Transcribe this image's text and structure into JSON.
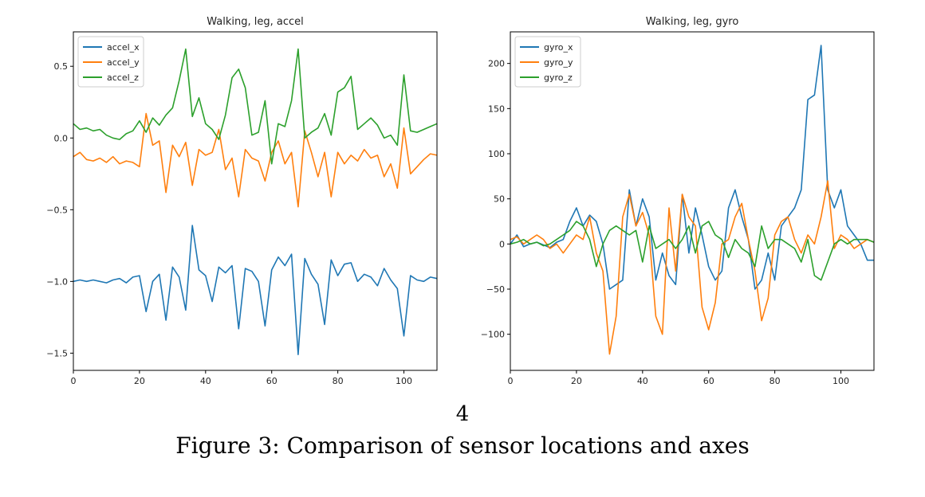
{
  "page": {
    "page_number": "4",
    "caption": "Figure 3: Comparison of sensor locations and axes"
  },
  "chart_data": [
    {
      "type": "line",
      "title": "Walking, leg, accel",
      "xlabel": "",
      "ylabel": "",
      "xlim": [
        0,
        110
      ],
      "ylim": [
        -1.62,
        0.74
      ],
      "xticks": [
        0,
        20,
        40,
        60,
        80,
        100
      ],
      "yticks": [
        -1.5,
        -1.0,
        -0.5,
        0.0,
        0.5
      ],
      "ytick_labels": [
        "−1.5",
        "−1.0",
        "−0.5",
        "0.0",
        "0.5"
      ],
      "legend_position": "top-left",
      "grid": false,
      "x": [
        0,
        2,
        4,
        6,
        8,
        10,
        12,
        14,
        16,
        18,
        20,
        22,
        24,
        26,
        28,
        30,
        32,
        34,
        36,
        38,
        40,
        42,
        44,
        46,
        48,
        50,
        52,
        54,
        56,
        58,
        60,
        62,
        64,
        66,
        68,
        70,
        72,
        74,
        76,
        78,
        80,
        82,
        84,
        86,
        88,
        90,
        92,
        94,
        96,
        98,
        100,
        102,
        104,
        106,
        108,
        110
      ],
      "series": [
        {
          "name": "accel_x",
          "color": "#1f77b4",
          "values": [
            -1.0,
            -0.99,
            -1.0,
            -0.99,
            -1.0,
            -1.01,
            -0.99,
            -0.98,
            -1.01,
            -0.97,
            -0.96,
            -1.21,
            -1.0,
            -0.95,
            -1.27,
            -0.9,
            -0.97,
            -1.2,
            -0.61,
            -0.92,
            -0.96,
            -1.14,
            -0.9,
            -0.94,
            -0.89,
            -1.33,
            -0.91,
            -0.93,
            -1.0,
            -1.31,
            -0.92,
            -0.83,
            -0.89,
            -0.81,
            -1.51,
            -0.84,
            -0.95,
            -1.02,
            -1.3,
            -0.85,
            -0.96,
            -0.88,
            -0.87,
            -1.0,
            -0.95,
            -0.97,
            -1.03,
            -0.91,
            -0.99,
            -1.05,
            -1.38,
            -0.96,
            -0.99,
            -1.0,
            -0.97,
            -0.98
          ]
        },
        {
          "name": "accel_y",
          "color": "#ff7f0e",
          "values": [
            -0.13,
            -0.1,
            -0.15,
            -0.16,
            -0.14,
            -0.17,
            -0.13,
            -0.18,
            -0.16,
            -0.17,
            -0.2,
            0.17,
            -0.05,
            -0.02,
            -0.38,
            -0.05,
            -0.13,
            -0.03,
            -0.33,
            -0.08,
            -0.12,
            -0.1,
            0.06,
            -0.22,
            -0.14,
            -0.41,
            -0.08,
            -0.14,
            -0.16,
            -0.3,
            -0.1,
            -0.02,
            -0.18,
            -0.1,
            -0.48,
            0.05,
            -0.1,
            -0.27,
            -0.1,
            -0.41,
            -0.1,
            -0.18,
            -0.12,
            -0.16,
            -0.08,
            -0.14,
            -0.12,
            -0.27,
            -0.18,
            -0.35,
            0.07,
            -0.25,
            -0.2,
            -0.15,
            -0.11,
            -0.12
          ]
        },
        {
          "name": "accel_z",
          "color": "#2ca02c",
          "values": [
            0.1,
            0.06,
            0.07,
            0.05,
            0.06,
            0.02,
            0.0,
            -0.01,
            0.03,
            0.05,
            0.12,
            0.04,
            0.14,
            0.09,
            0.16,
            0.21,
            0.4,
            0.62,
            0.15,
            0.28,
            0.1,
            0.06,
            -0.01,
            0.16,
            0.42,
            0.48,
            0.35,
            0.02,
            0.04,
            0.26,
            -0.18,
            0.1,
            0.08,
            0.26,
            0.62,
            0.0,
            0.04,
            0.07,
            0.17,
            0.02,
            0.32,
            0.35,
            0.43,
            0.06,
            0.1,
            0.14,
            0.09,
            0.0,
            0.02,
            -0.05,
            0.44,
            0.05,
            0.04,
            0.06,
            0.08,
            0.1
          ]
        }
      ]
    },
    {
      "type": "line",
      "title": "Walking, leg, gyro",
      "xlabel": "",
      "ylabel": "",
      "xlim": [
        0,
        110
      ],
      "ylim": [
        -140,
        235
      ],
      "xticks": [
        0,
        20,
        40,
        60,
        80,
        100
      ],
      "yticks": [
        -100,
        -50,
        0,
        50,
        100,
        150,
        200
      ],
      "ytick_labels": [
        "−100",
        "−50",
        "0",
        "50",
        "100",
        "150",
        "200"
      ],
      "legend_position": "top-left",
      "grid": false,
      "x": [
        0,
        2,
        4,
        6,
        8,
        10,
        12,
        14,
        16,
        18,
        20,
        22,
        24,
        26,
        28,
        30,
        32,
        34,
        36,
        38,
        40,
        42,
        44,
        46,
        48,
        50,
        52,
        54,
        56,
        58,
        60,
        62,
        64,
        66,
        68,
        70,
        72,
        74,
        76,
        78,
        80,
        82,
        84,
        86,
        88,
        90,
        92,
        94,
        96,
        98,
        100,
        102,
        104,
        106,
        108,
        110
      ],
      "series": [
        {
          "name": "gyro_x",
          "color": "#1f77b4",
          "values": [
            0,
            10,
            -3,
            0,
            2,
            -1,
            -4,
            2,
            5,
            25,
            40,
            20,
            32,
            25,
            0,
            -50,
            -45,
            -40,
            60,
            20,
            50,
            30,
            -40,
            -10,
            -35,
            -45,
            55,
            -10,
            40,
            10,
            -25,
            -40,
            -30,
            40,
            60,
            30,
            5,
            -50,
            -40,
            -10,
            -40,
            20,
            30,
            40,
            60,
            160,
            165,
            220,
            60,
            40,
            60,
            20,
            10,
            0,
            -18,
            -18
          ]
        },
        {
          "name": "gyro_y",
          "color": "#ff7f0e",
          "values": [
            5,
            8,
            0,
            5,
            10,
            5,
            -5,
            0,
            -10,
            0,
            10,
            5,
            30,
            -10,
            -30,
            -122,
            -80,
            30,
            55,
            20,
            35,
            10,
            -80,
            -100,
            40,
            -30,
            55,
            30,
            20,
            -70,
            -95,
            -65,
            0,
            5,
            30,
            45,
            5,
            -30,
            -85,
            -60,
            10,
            25,
            30,
            5,
            -10,
            10,
            0,
            30,
            70,
            -5,
            10,
            5,
            -5,
            0,
            5,
            2
          ]
        },
        {
          "name": "gyro_z",
          "color": "#2ca02c",
          "values": [
            0,
            2,
            5,
            0,
            2,
            -2,
            0,
            5,
            10,
            15,
            25,
            20,
            5,
            -25,
            0,
            15,
            20,
            15,
            10,
            15,
            -20,
            20,
            -5,
            0,
            5,
            -5,
            5,
            20,
            -10,
            20,
            25,
            10,
            5,
            -15,
            5,
            -5,
            -10,
            -25,
            20,
            -5,
            5,
            5,
            0,
            -5,
            -20,
            5,
            -35,
            -40,
            -20,
            0,
            5,
            0,
            5,
            5,
            5,
            2
          ]
        }
      ]
    }
  ]
}
